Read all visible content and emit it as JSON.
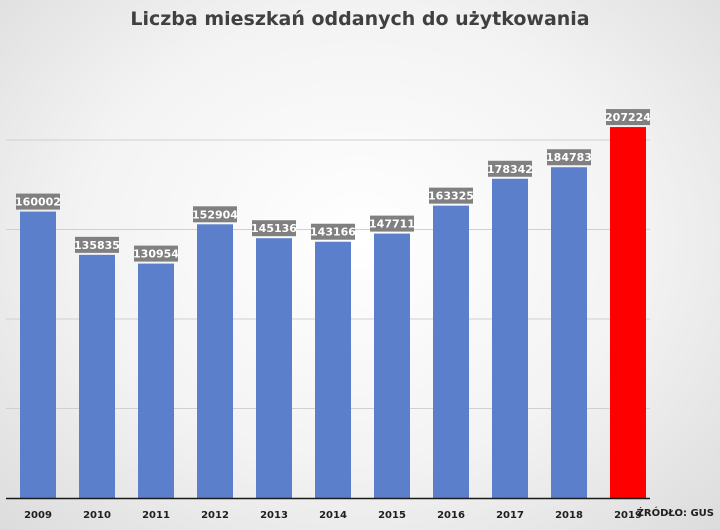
{
  "chart_data": {
    "type": "bar",
    "title": "Liczba mieszkań oddanych do użytkowania",
    "source": "ŹRÓDŁO: GUS",
    "categories": [
      "2009",
      "2010",
      "2011",
      "2012",
      "2013",
      "2014",
      "2015",
      "2016",
      "2017",
      "2018",
      "2019"
    ],
    "values": [
      160002,
      135835,
      130954,
      152904,
      145136,
      143166,
      147711,
      163325,
      178342,
      184783,
      207224
    ],
    "highlight_index": 10,
    "colors": {
      "bar": "#5b7fcb",
      "highlight": "#ff0000",
      "label_bg": "#808080",
      "grid": "#d0d0d0"
    },
    "ylim": [
      0,
      200000
    ],
    "gridlines": [
      50000,
      100000,
      150000,
      200000
    ],
    "grid": true,
    "xlabel": "",
    "ylabel": "",
    "legend": "none"
  }
}
